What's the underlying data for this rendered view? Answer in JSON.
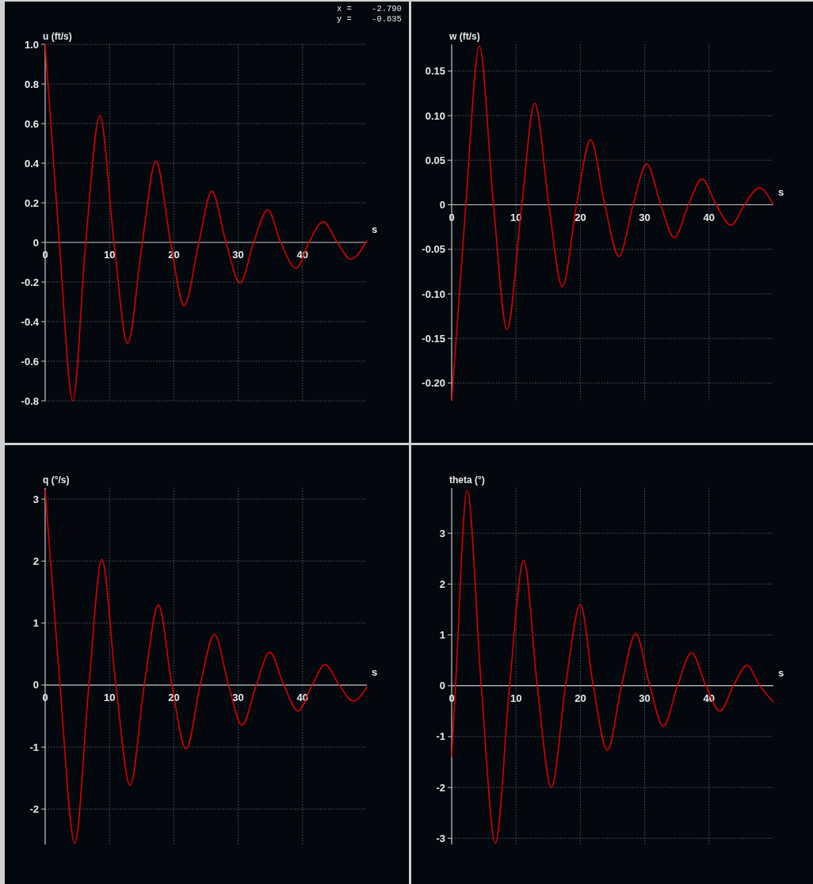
{
  "chart_data": [
    {
      "type": "line",
      "ylabel": "u (ft/s)",
      "xlabel": "s",
      "xlim": [
        0,
        50
      ],
      "xticks": [
        0,
        10,
        20,
        30,
        40
      ],
      "ylim": [
        -0.8,
        1.0
      ],
      "yticks": [
        {
          "value": -0.8,
          "label": "-0.8"
        },
        {
          "value": -0.6,
          "label": "-0.6"
        },
        {
          "value": -0.4,
          "label": "-0.4"
        },
        {
          "value": -0.2,
          "label": "-0.2"
        },
        0,
        {
          "value": 0.2,
          "label": "0.2"
        },
        {
          "value": 0.4,
          "label": "0.4"
        },
        {
          "value": 0.6,
          "label": "0.6"
        },
        {
          "value": 0.8,
          "label": "0.8"
        },
        {
          "value": 1.0,
          "label": "1.0"
        }
      ],
      "grid": true,
      "marker": "none",
      "line_style": "solid",
      "annotations": [
        "x =    -2.790",
        "y =    -0.635"
      ],
      "series": [
        {
          "color": "#d40000",
          "x": [
            0,
            2.2,
            4.3,
            6.3,
            8.5,
            10.7,
            12.8,
            15.1,
            17.2,
            19.5,
            21.6,
            23.9,
            25.9,
            28.1,
            30.3,
            32.4,
            34.6,
            36.6,
            39,
            41,
            43.2,
            45.4,
            47.5,
            50
          ],
          "values": [
            1.0,
            0,
            -0.8,
            0,
            0.64,
            0,
            -0.51,
            0,
            0.41,
            0,
            -0.32,
            0,
            0.26,
            0,
            -0.205,
            0,
            0.165,
            0,
            -0.13,
            0,
            0.105,
            0,
            -0.085,
            0.01
          ]
        }
      ]
    },
    {
      "type": "line",
      "ylabel": "w (ft/s)",
      "xlabel": "s",
      "xlim": [
        0,
        50
      ],
      "xticks": [
        0,
        10,
        20,
        30,
        40
      ],
      "ylim": [
        -0.22,
        0.18
      ],
      "yticks": [
        {
          "value": -0.2,
          "label": "-0.20"
        },
        {
          "value": -0.15,
          "label": "-0.15"
        },
        {
          "value": -0.1,
          "label": "-0.10"
        },
        {
          "value": -0.05,
          "label": "-0.05"
        },
        0,
        {
          "value": 0.05,
          "label": "0.05"
        },
        {
          "value": 0.1,
          "label": "0.10"
        },
        {
          "value": 0.15,
          "label": "0.15"
        }
      ],
      "grid": true,
      "marker": "none",
      "line_style": "solid",
      "series": [
        {
          "color": "#d40000",
          "x": [
            0,
            2.2,
            4.3,
            6.5,
            8.6,
            10.9,
            12.9,
            15.1,
            17.2,
            19.4,
            21.6,
            23.8,
            26,
            28.2,
            30.3,
            32.5,
            34.6,
            36.8,
            38.9,
            41.1,
            43.4,
            45.5,
            47.8,
            50
          ],
          "values": [
            -0.22,
            0,
            0.178,
            0,
            -0.14,
            0,
            0.114,
            0,
            -0.092,
            0,
            0.073,
            0,
            -0.058,
            0,
            0.046,
            0,
            -0.037,
            0,
            0.029,
            0,
            -0.023,
            0,
            0.019,
            0
          ]
        }
      ]
    },
    {
      "type": "line",
      "ylabel": "q (°/s)",
      "xlabel": "s",
      "xlim": [
        0,
        50
      ],
      "xticks": [
        0,
        10,
        20,
        30,
        40
      ],
      "ylim": [
        -2.57,
        3.18
      ],
      "yticks": [
        -2,
        -1,
        0,
        1,
        2,
        3
      ],
      "grid": true,
      "marker": "none",
      "line_style": "solid",
      "series": [
        {
          "color": "#d40000",
          "x": [
            0,
            2.3,
            4.6,
            6.8,
            8.8,
            11,
            13.2,
            15.4,
            17.6,
            19.7,
            21.9,
            24.1,
            26.3,
            28.5,
            30.6,
            32.8,
            34.9,
            37.1,
            39.3,
            41.5,
            43.5,
            45.7,
            47.9,
            50
          ],
          "values": [
            3.15,
            0,
            -2.55,
            0,
            2.03,
            0,
            -1.62,
            0,
            1.29,
            0,
            -1.03,
            0,
            0.82,
            0,
            -0.65,
            0,
            0.53,
            0,
            -0.42,
            0,
            0.33,
            0,
            -0.26,
            -0.03
          ]
        }
      ]
    },
    {
      "type": "line",
      "ylabel": "theta (°)",
      "xlabel": "s",
      "xlim": [
        0,
        50
      ],
      "xticks": [
        0,
        10,
        20,
        30,
        40
      ],
      "ylim": [
        -3.12,
        3.89
      ],
      "yticks": [
        -3,
        -2,
        -1,
        0,
        1,
        2,
        3
      ],
      "grid": true,
      "marker": "none",
      "line_style": "solid",
      "series": [
        {
          "color": "#d40000",
          "x": [
            0,
            0.6,
            2.4,
            4.6,
            6.8,
            9,
            11.2,
            13.3,
            15.5,
            17.7,
            20,
            22,
            24.2,
            26.4,
            28.6,
            30.8,
            32.9,
            35.1,
            37.3,
            39.5,
            41.7,
            43.8,
            45.9,
            47.9,
            50
          ],
          "values": [
            -1.4,
            0,
            3.85,
            0,
            -3.1,
            0,
            2.47,
            0,
            -2.0,
            0,
            1.6,
            0,
            -1.27,
            0,
            1.02,
            0,
            -0.8,
            0,
            0.65,
            0,
            -0.5,
            0,
            0.4,
            0,
            -0.32
          ]
        }
      ]
    }
  ]
}
